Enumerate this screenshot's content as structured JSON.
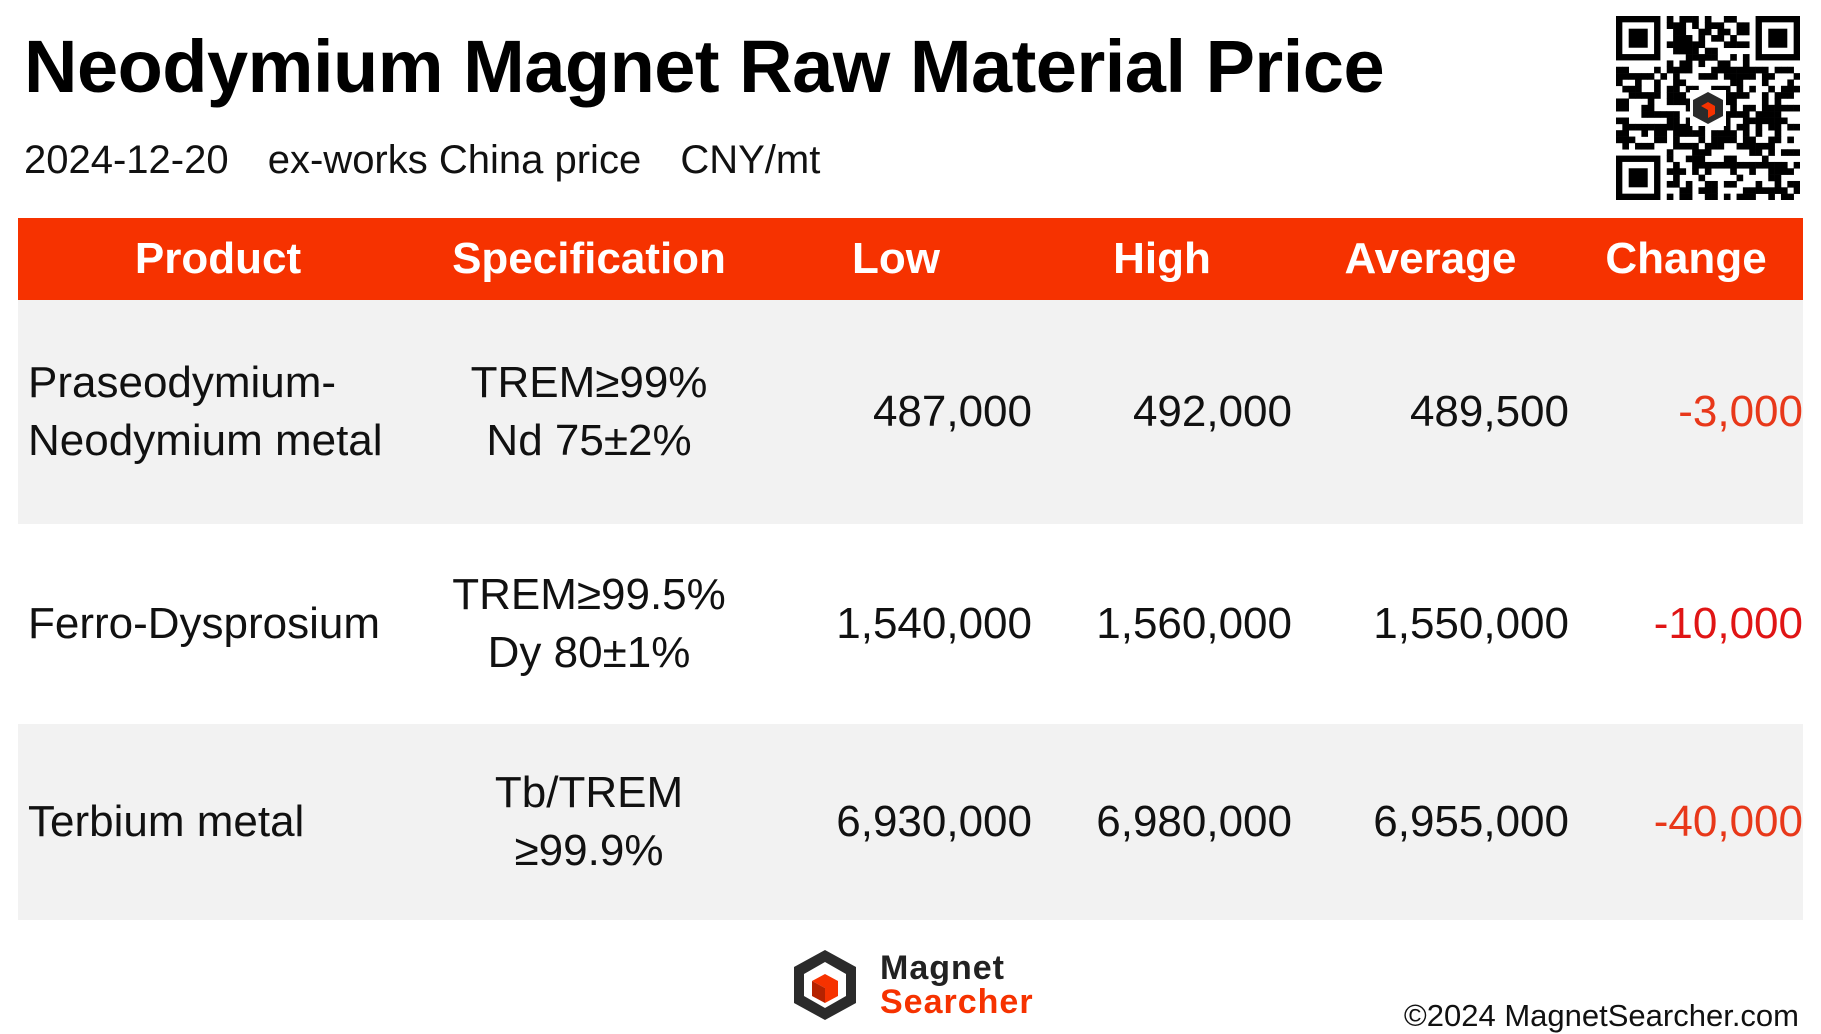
{
  "header": {
    "title": "Neodymium Magnet Raw Material Price",
    "date": "2024-12-20",
    "price_basis": "ex-works China price",
    "unit": "CNY/mt"
  },
  "table": {
    "columns": [
      "Product",
      "Specification",
      "Low",
      "High",
      "Average",
      "Change"
    ],
    "rows": [
      {
        "product": [
          "Praseodymium-",
          "Neodymium metal"
        ],
        "spec": [
          "TREM≥99%",
          "Nd 75±2%"
        ],
        "low": "487,000",
        "high": "492,000",
        "average": "489,500",
        "change": "-3,000"
      },
      {
        "product": [
          "Ferro-Dysprosium"
        ],
        "spec": [
          "TREM≥99.5%",
          "Dy 80±1%"
        ],
        "low": "1,540,000",
        "high": "1,560,000",
        "average": "1,550,000",
        "change": "-10,000"
      },
      {
        "product": [
          "Terbium metal"
        ],
        "spec": [
          "Tb/TREM",
          "≥99.9%"
        ],
        "low": "6,930,000",
        "high": "6,980,000",
        "average": "6,955,000",
        "change": "-40,000"
      }
    ]
  },
  "footer": {
    "logo_line1": "Magnet",
    "logo_line2": "Searcher",
    "copyright": "©2024 MagnetSearcher.com"
  },
  "colors": {
    "accent": "#f63200",
    "negative": "#e8381a",
    "row_shade": "#f2f2f2"
  },
  "icons": {
    "qr": "qr-code-icon",
    "logo": "magnet-searcher-logo-icon"
  }
}
